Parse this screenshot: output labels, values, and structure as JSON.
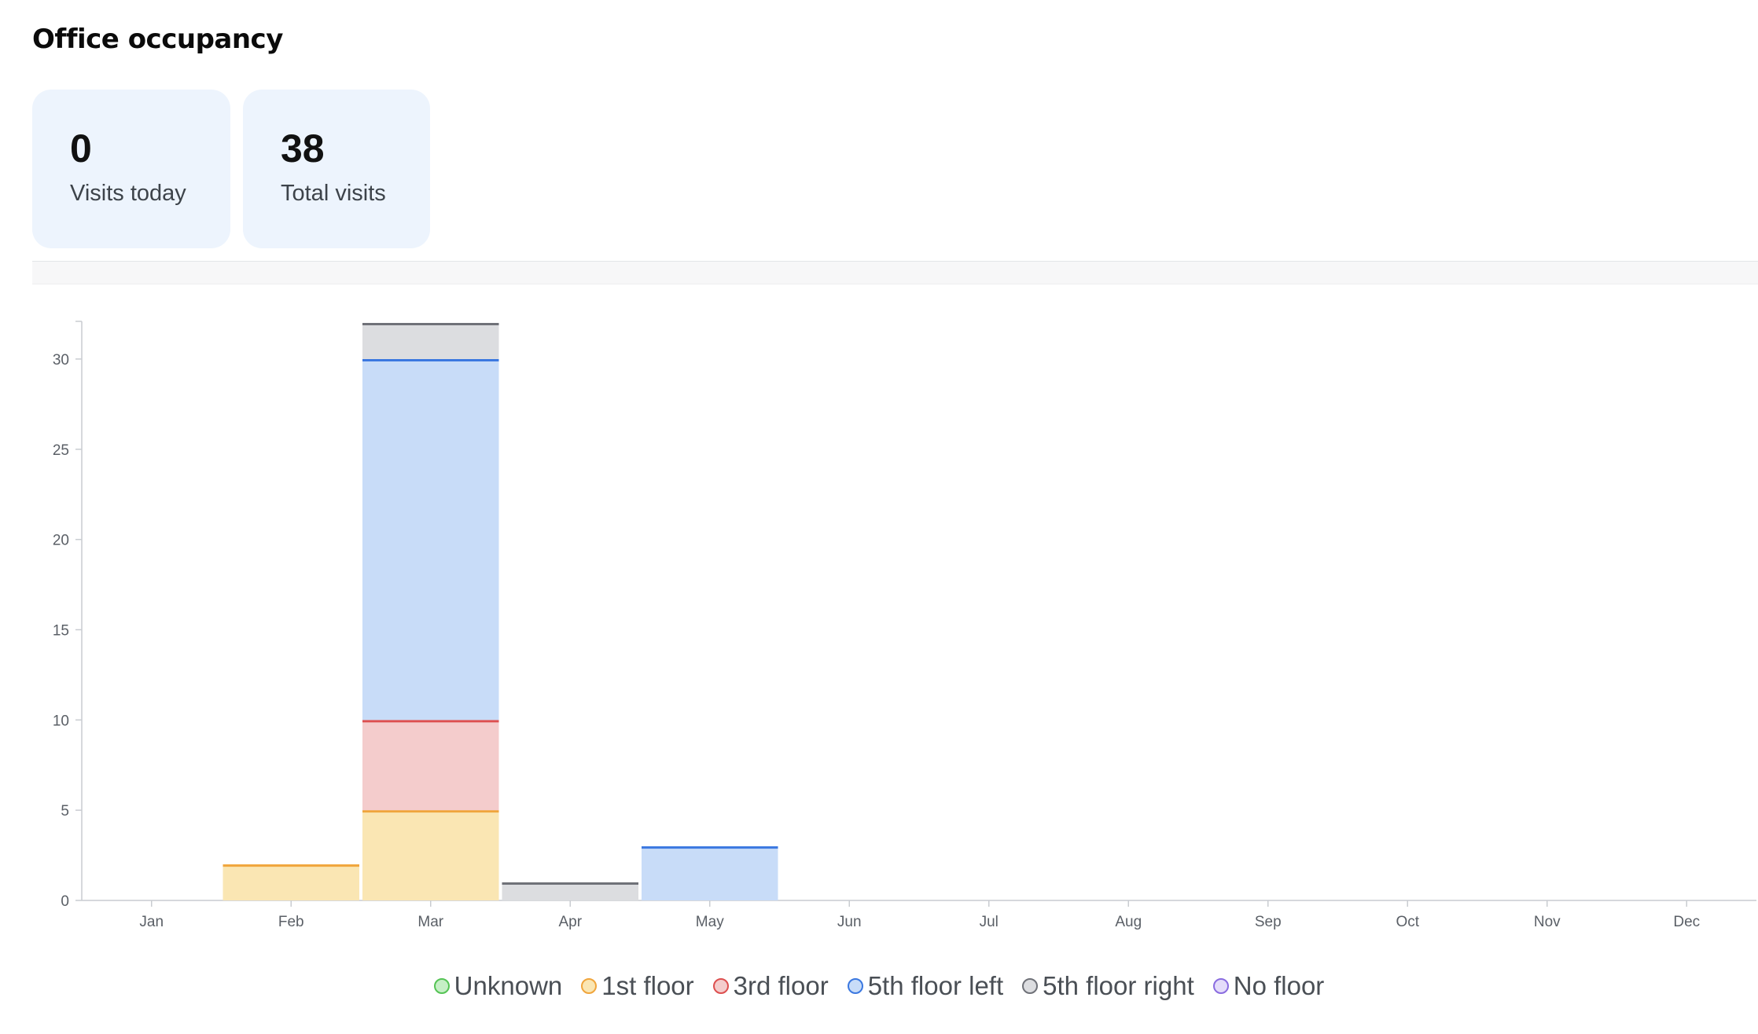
{
  "page": {
    "title": "Office occupancy"
  },
  "stats": [
    {
      "value": "0",
      "label": "Visits today"
    },
    {
      "value": "38",
      "label": "Total visits"
    }
  ],
  "chart_data": {
    "type": "bar",
    "stacked": true,
    "categories": [
      "Jan",
      "Feb",
      "Mar",
      "Apr",
      "May",
      "Jun",
      "Jul",
      "Aug",
      "Sep",
      "Oct",
      "Nov",
      "Dec"
    ],
    "ylim": [
      0,
      32
    ],
    "yticks": [
      0,
      5,
      10,
      15,
      20,
      25,
      30
    ],
    "grid": false,
    "legend_position": "bottom",
    "series": [
      {
        "name": "Unknown",
        "fill": "#c6efc6",
        "stroke": "#55c455",
        "values": [
          0,
          0,
          0,
          0,
          0,
          0,
          0,
          0,
          0,
          0,
          0,
          0
        ]
      },
      {
        "name": "1st floor",
        "fill": "#fae6b3",
        "stroke": "#f0a53c",
        "values": [
          0,
          2,
          5,
          0,
          0,
          0,
          0,
          0,
          0,
          0,
          0,
          0
        ]
      },
      {
        "name": "3rd floor",
        "fill": "#f4cccc",
        "stroke": "#dd4f4f",
        "values": [
          0,
          0,
          5,
          0,
          0,
          0,
          0,
          0,
          0,
          0,
          0,
          0
        ]
      },
      {
        "name": "5th floor left",
        "fill": "#c8dcf8",
        "stroke": "#3b78e0",
        "values": [
          0,
          0,
          20,
          0,
          3,
          0,
          0,
          0,
          0,
          0,
          0,
          0
        ]
      },
      {
        "name": "5th floor right",
        "fill": "#dcdde0",
        "stroke": "#6f7178",
        "values": [
          0,
          0,
          2,
          1,
          0,
          0,
          0,
          0,
          0,
          0,
          0,
          0
        ]
      },
      {
        "name": "No floor",
        "fill": "#e4dcfa",
        "stroke": "#8a6ce0",
        "values": [
          0,
          0,
          0,
          0,
          0,
          0,
          0,
          0,
          0,
          0,
          0,
          0
        ]
      }
    ]
  }
}
